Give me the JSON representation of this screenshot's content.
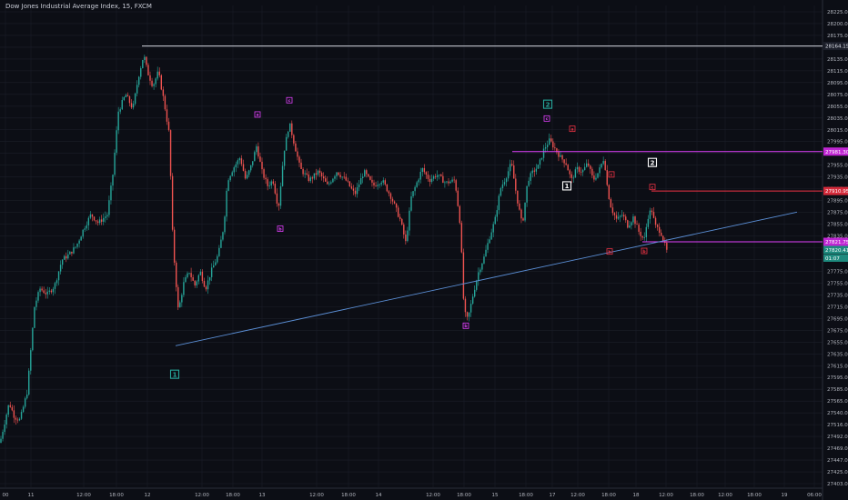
{
  "chart_data": {
    "type": "candlestick",
    "title": "Dow Jones Industrial Average Index, 15, FXCM",
    "ylim": [
      27392,
      28236
    ],
    "yticks": [
      "28225.00",
      "28200.00",
      "28175.00",
      "28155.00",
      "28135.00",
      "28115.00",
      "28095.00",
      "28075.00",
      "28055.00",
      "28035.00",
      "28015.00",
      "27995.00",
      "27975.00",
      "27955.00",
      "27935.00",
      "27915.00",
      "27895.00",
      "27875.00",
      "27855.00",
      "27835.00",
      "27815.00",
      "27795.00",
      "27775.00",
      "27755.00",
      "27735.00",
      "27715.00",
      "27695.00",
      "27675.00",
      "27655.00",
      "27635.00",
      "27615.00",
      "27595.00",
      "27585.00",
      "27565.00",
      "27540.00",
      "27516.00",
      "27492.00",
      "27469.00",
      "27447.00",
      "27425.00",
      "27403.00"
    ],
    "xticks": [
      "00",
      "11",
      "12:00",
      "18:00",
      "12",
      "12:00",
      "18:00",
      "13",
      "12:00",
      "18:00",
      "14",
      "12:00",
      "18:00",
      "15",
      "18:00",
      "17",
      "12:00",
      "18:00",
      "18",
      "12:00",
      "18:00",
      "12:00",
      "18:00",
      "19",
      "06:00",
      "12:00",
      "18:00"
    ],
    "colors": {
      "up": "#26a69a",
      "down": "#ef5350",
      "background": "#0c0e15",
      "grid": "#1b1e29",
      "axis_text": "#b2b5be",
      "white_line": "#d1d4dc",
      "magenta": "#e040fb",
      "red": "#ef3344",
      "blue": "#5b8fd6",
      "teal": "#26a69a"
    },
    "price_path": [
      [
        0,
        27470
      ],
      [
        10,
        27540
      ],
      [
        16,
        27515
      ],
      [
        22,
        27510
      ],
      [
        30,
        27560
      ],
      [
        38,
        27710
      ],
      [
        44,
        27740
      ],
      [
        52,
        27730
      ],
      [
        60,
        27745
      ],
      [
        68,
        27790
      ],
      [
        76,
        27800
      ],
      [
        84,
        27815
      ],
      [
        92,
        27845
      ],
      [
        100,
        27870
      ],
      [
        108,
        27855
      ],
      [
        118,
        27870
      ],
      [
        124,
        27940
      ],
      [
        130,
        28050
      ],
      [
        138,
        28080
      ],
      [
        146,
        28055
      ],
      [
        152,
        28110
      ],
      [
        158,
        28150
      ],
      [
        162,
        28120
      ],
      [
        168,
        28095
      ],
      [
        174,
        28120
      ],
      [
        180,
        28070
      ],
      [
        186,
        28010
      ],
      [
        190,
        27820
      ],
      [
        196,
        27700
      ],
      [
        202,
        27750
      ],
      [
        208,
        27770
      ],
      [
        214,
        27745
      ],
      [
        220,
        27770
      ],
      [
        226,
        27740
      ],
      [
        232,
        27770
      ],
      [
        240,
        27800
      ],
      [
        246,
        27850
      ],
      [
        250,
        27930
      ],
      [
        256,
        27950
      ],
      [
        264,
        27970
      ],
      [
        270,
        27930
      ],
      [
        276,
        27955
      ],
      [
        282,
        27990
      ],
      [
        288,
        27945
      ],
      [
        294,
        27920
      ],
      [
        300,
        27930
      ],
      [
        306,
        27880
      ],
      [
        312,
        27980
      ],
      [
        318,
        28030
      ],
      [
        324,
        27990
      ],
      [
        330,
        27950
      ],
      [
        340,
        27930
      ],
      [
        350,
        27945
      ],
      [
        360,
        27920
      ],
      [
        370,
        27945
      ],
      [
        380,
        27930
      ],
      [
        390,
        27905
      ],
      [
        400,
        27945
      ],
      [
        410,
        27920
      ],
      [
        420,
        27930
      ],
      [
        430,
        27900
      ],
      [
        440,
        27860
      ],
      [
        446,
        27820
      ],
      [
        452,
        27900
      ],
      [
        458,
        27925
      ],
      [
        464,
        27950
      ],
      [
        472,
        27930
      ],
      [
        480,
        27940
      ],
      [
        490,
        27925
      ],
      [
        500,
        27930
      ],
      [
        506,
        27850
      ],
      [
        510,
        27700
      ],
      [
        514,
        27685
      ],
      [
        520,
        27730
      ],
      [
        526,
        27770
      ],
      [
        532,
        27795
      ],
      [
        538,
        27830
      ],
      [
        544,
        27860
      ],
      [
        550,
        27915
      ],
      [
        556,
        27935
      ],
      [
        562,
        27960
      ],
      [
        568,
        27900
      ],
      [
        574,
        27850
      ],
      [
        580,
        27930
      ],
      [
        586,
        27945
      ],
      [
        592,
        27955
      ],
      [
        598,
        27985
      ],
      [
        604,
        28000
      ],
      [
        610,
        27985
      ],
      [
        616,
        27970
      ],
      [
        622,
        27960
      ],
      [
        628,
        27930
      ],
      [
        634,
        27950
      ],
      [
        640,
        27945
      ],
      [
        646,
        27960
      ],
      [
        652,
        27930
      ],
      [
        658,
        27945
      ],
      [
        664,
        27970
      ],
      [
        668,
        27910
      ],
      [
        672,
        27880
      ],
      [
        678,
        27860
      ],
      [
        684,
        27870
      ],
      [
        690,
        27850
      ],
      [
        696,
        27865
      ],
      [
        702,
        27840
      ],
      [
        708,
        27825
      ],
      [
        712,
        27865
      ],
      [
        716,
        27880
      ],
      [
        720,
        27850
      ],
      [
        726,
        27840
      ],
      [
        730,
        27820
      ],
      [
        734,
        27800
      ]
    ],
    "white_level_price": 28165,
    "white_level_label": "28164.15",
    "magenta_upper_price": 27980,
    "magenta_upper_label": "27981.30",
    "red_level_price": 27911,
    "red_level_label": "27910.95",
    "magenta_lower_price": 27822,
    "magenta_lower_label": "27821.75",
    "last_price_label": "27820.41",
    "countdown_label": "01:07",
    "trendline": {
      "from_price": 27640,
      "to_price": 27874
    },
    "wave_labels": [
      {
        "text": "1",
        "color": "#26a69a",
        "price": 27590,
        "style": "box"
      },
      {
        "text": "a",
        "color": "#e040fb",
        "price": 28045,
        "style": "small"
      },
      {
        "text": "c",
        "color": "#e040fb",
        "price": 28070,
        "style": "small"
      },
      {
        "text": "b",
        "color": "#e040fb",
        "price": 27845,
        "style": "small"
      },
      {
        "text": "b",
        "color": "#e040fb",
        "price": 27675,
        "style": "small"
      },
      {
        "text": "2",
        "color": "#26a69a",
        "price": 28063,
        "style": "box"
      },
      {
        "text": "c",
        "color": "#e040fb",
        "price": 28038,
        "style": "small"
      },
      {
        "text": "a",
        "color": "#ef3344",
        "price": 28020,
        "style": "small"
      },
      {
        "text": "1",
        "color": "#ffffff",
        "price": 27920,
        "style": "box"
      },
      {
        "text": "2",
        "color": "#ffffff",
        "price": 27961,
        "style": "box"
      },
      {
        "text": "c",
        "color": "#ef3344",
        "price": 27940,
        "style": "small"
      },
      {
        "text": "b",
        "color": "#ef3344",
        "price": 27805,
        "style": "small"
      },
      {
        "text": "b",
        "color": "#ef3344",
        "price": 27806,
        "style": "small"
      },
      {
        "text": "c",
        "color": "#ef3344",
        "price": 27918,
        "style": "small"
      }
    ]
  }
}
